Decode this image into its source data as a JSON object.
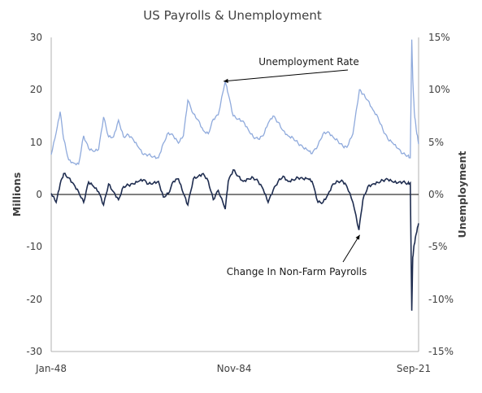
{
  "chart_data": {
    "type": "line",
    "title": "US Payrolls & Unemployment",
    "xlabel": "",
    "ylabel_left": "Millions",
    "ylabel_right": "Unemployment",
    "x_tick_labels": [
      "Jan-48",
      "Nov-84",
      "Sep-21"
    ],
    "y_left": {
      "min": -30,
      "max": 30,
      "ticks": [
        30,
        20,
        10,
        0,
        -10,
        -20,
        -30
      ]
    },
    "y_right": {
      "min": -15,
      "max": 15,
      "ticks": [
        "15%",
        "10%",
        "5%",
        "0%",
        "-5%",
        "-10%",
        "-15%"
      ]
    },
    "x_range": [
      1948.0,
      2021.67
    ],
    "grid": false,
    "annotations": [
      {
        "text": "Unemployment Rate",
        "target_x": 1982.9,
        "target_y_right": 10.5
      },
      {
        "text": "Change In Non-Farm Payrolls",
        "target_x": 2009.7,
        "target_y_left": -6.8
      }
    ],
    "series": [
      {
        "name": "Unemployment Rate",
        "axis": "right",
        "color": "#8faadc",
        "x": [
          1948.0,
          1949.0,
          1949.8,
          1950.5,
          1951.5,
          1952.5,
          1953.5,
          1954.5,
          1955.5,
          1956.5,
          1957.5,
          1958.5,
          1959.5,
          1960.5,
          1961.5,
          1962.5,
          1963.5,
          1964.5,
          1965.5,
          1966.5,
          1967.5,
          1968.5,
          1969.5,
          1970.5,
          1971.5,
          1972.5,
          1973.5,
          1974.5,
          1975.4,
          1976.5,
          1977.5,
          1978.5,
          1979.5,
          1980.5,
          1981.5,
          1982.9,
          1983.5,
          1984.5,
          1985.5,
          1986.5,
          1987.5,
          1988.5,
          1989.5,
          1990.5,
          1991.5,
          1992.5,
          1993.5,
          1994.5,
          1995.5,
          1996.5,
          1997.5,
          1998.5,
          1999.5,
          2000.3,
          2001.5,
          2002.5,
          2003.5,
          2004.5,
          2005.5,
          2006.5,
          2007.3,
          2008.5,
          2009.8,
          2010.5,
          2011.5,
          2012.5,
          2013.5,
          2014.5,
          2015.5,
          2016.5,
          2017.5,
          2018.5,
          2019.5,
          2020.0,
          2020.3,
          2020.5,
          2020.8,
          2021.2,
          2021.67
        ],
        "values": [
          3.8,
          5.9,
          7.9,
          5.3,
          3.3,
          3.0,
          2.9,
          5.6,
          4.4,
          4.1,
          4.3,
          7.4,
          5.5,
          5.5,
          7.1,
          5.5,
          5.7,
          5.2,
          4.5,
          3.8,
          3.8,
          3.6,
          3.5,
          4.9,
          5.9,
          5.6,
          4.9,
          5.6,
          9.0,
          7.7,
          7.1,
          6.1,
          5.8,
          7.2,
          7.6,
          10.8,
          9.6,
          7.5,
          7.2,
          7.0,
          6.2,
          5.5,
          5.3,
          5.6,
          6.8,
          7.5,
          6.9,
          6.1,
          5.6,
          5.4,
          4.9,
          4.5,
          4.2,
          3.9,
          4.7,
          5.8,
          6.0,
          5.5,
          5.1,
          4.6,
          4.5,
          5.8,
          10.0,
          9.6,
          9.0,
          8.1,
          7.4,
          6.2,
          5.3,
          4.9,
          4.4,
          3.9,
          3.7,
          3.5,
          14.8,
          11.1,
          7.9,
          6.2,
          4.8
        ]
      },
      {
        "name": "Change In Non-Farm Payrolls",
        "axis": "left",
        "color": "#1f2d50",
        "x": [
          1948.0,
          1949.0,
          1949.8,
          1950.5,
          1951.5,
          1952.5,
          1953.5,
          1954.5,
          1955.5,
          1956.5,
          1957.5,
          1958.5,
          1959.5,
          1960.5,
          1961.5,
          1962.5,
          1963.5,
          1964.5,
          1965.5,
          1966.5,
          1967.5,
          1968.5,
          1969.5,
          1970.5,
          1971.5,
          1972.5,
          1973.5,
          1974.5,
          1975.4,
          1976.5,
          1977.5,
          1978.5,
          1979.5,
          1980.5,
          1981.5,
          1982.9,
          1983.5,
          1984.5,
          1985.5,
          1986.5,
          1987.5,
          1988.5,
          1989.5,
          1990.5,
          1991.5,
          1992.5,
          1993.5,
          1994.5,
          1995.5,
          1996.5,
          1997.5,
          1998.5,
          1999.5,
          2000.3,
          2001.5,
          2002.5,
          2003.5,
          2004.5,
          2005.5,
          2006.5,
          2007.3,
          2008.5,
          2009.7,
          2010.5,
          2011.5,
          2012.5,
          2013.5,
          2014.5,
          2015.5,
          2016.5,
          2017.5,
          2018.5,
          2019.5,
          2020.0,
          2020.3,
          2020.5,
          2020.8,
          2021.2,
          2021.67
        ],
        "values": [
          0.2,
          -1.5,
          2.0,
          4.0,
          3.2,
          2.0,
          0.5,
          -1.5,
          2.4,
          1.5,
          0.5,
          -2.0,
          2.0,
          0.5,
          -1.0,
          1.5,
          1.8,
          2.0,
          2.5,
          2.8,
          2.0,
          2.2,
          2.5,
          -0.5,
          0.2,
          2.5,
          3.0,
          0.2,
          -2.0,
          3.0,
          3.5,
          4.0,
          2.5,
          -1.0,
          0.8,
          -2.8,
          2.5,
          4.7,
          3.5,
          2.5,
          3.0,
          3.2,
          2.5,
          1.0,
          -1.5,
          0.8,
          2.5,
          3.5,
          2.5,
          2.8,
          3.2,
          3.0,
          3.0,
          2.5,
          -1.5,
          -1.5,
          0.0,
          2.0,
          2.5,
          2.5,
          1.5,
          -1.5,
          -6.8,
          -1.0,
          1.5,
          2.0,
          2.3,
          2.7,
          2.9,
          2.4,
          2.2,
          2.4,
          2.1,
          2.2,
          -22.2,
          -12.0,
          -9.5,
          -7.5,
          -5.5
        ]
      }
    ]
  }
}
